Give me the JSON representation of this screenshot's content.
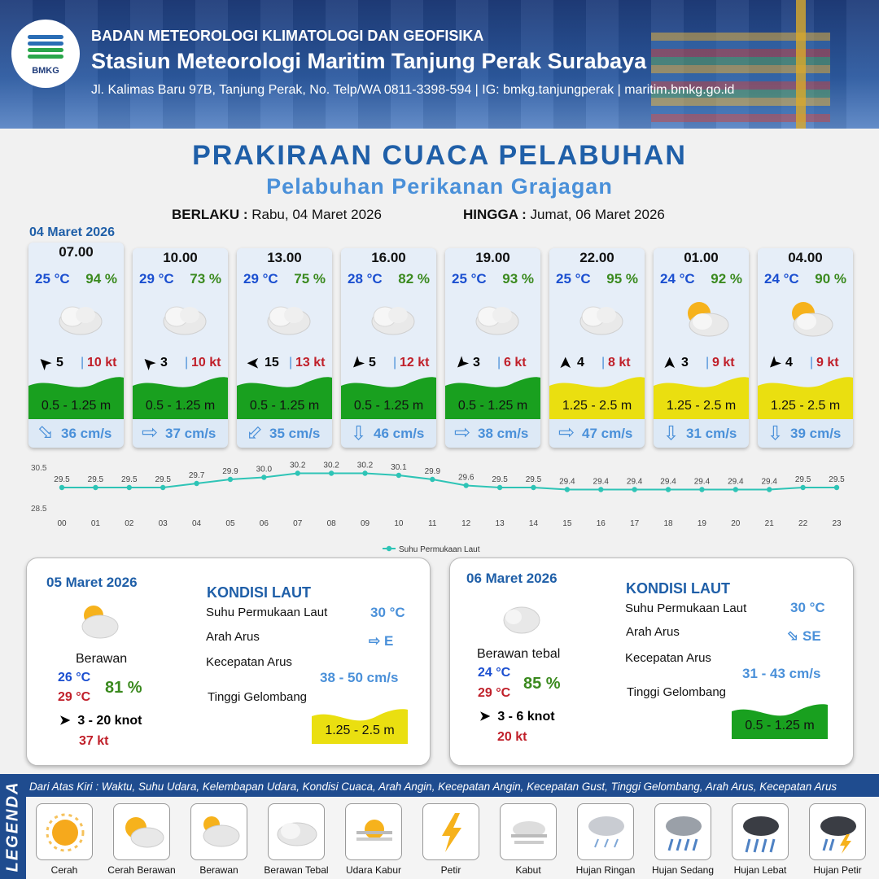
{
  "header": {
    "logo_text": "BMKG",
    "org": "BADAN METEOROLOGI KLIMATOLOGI DAN GEOFISIKA",
    "station": "Stasiun Meteorologi Maritim Tanjung Perak Surabaya",
    "address": "Jl. Kalimas Baru 97B, Tanjung Perak, No. Telp/WA 0811-3398-594 | IG: bmkg.tanjungperak | maritim.bmkg.go.id"
  },
  "title": "PRAKIRAAN CUACA PELABUHAN",
  "subtitle": "Pelabuhan Perikanan Grajagan",
  "validity": {
    "from_label": "BERLAKU :",
    "from_value": "Rabu, 04 Maret 2026",
    "to_label": "HINGGA :",
    "to_value": "Jumat, 06 Maret 2026"
  },
  "day1_date": "04 Maret 2026",
  "cards": [
    {
      "time": "07.00",
      "temp": "25 °C",
      "hum": "94 %",
      "icon": "cloudy-icon",
      "wind_dir": "SE",
      "wind": "5",
      "gust": "10 kt",
      "wave": "0.5 - 1.25 m",
      "wave_color": "#19a01f",
      "cur_dir": "SE",
      "cur": "36 cm/s"
    },
    {
      "time": "10.00",
      "temp": "29 °C",
      "hum": "73 %",
      "icon": "cloudy-icon",
      "wind_dir": "SE",
      "wind": "3",
      "gust": "10 kt",
      "wave": "0.5 - 1.25 m",
      "wave_color": "#19a01f",
      "cur_dir": "E",
      "cur": "37 cm/s"
    },
    {
      "time": "13.00",
      "temp": "29 °C",
      "hum": "75 %",
      "icon": "cloudy-icon",
      "wind_dir": "E",
      "wind": "15",
      "gust": "13 kt",
      "wave": "0.5 - 1.25 m",
      "wave_color": "#19a01f",
      "cur_dir": "SW",
      "cur": "35 cm/s"
    },
    {
      "time": "16.00",
      "temp": "28 °C",
      "hum": "82 %",
      "icon": "cloudy-icon",
      "wind_dir": "NE",
      "wind": "5",
      "gust": "12 kt",
      "wave": "0.5 - 1.25 m",
      "wave_color": "#19a01f",
      "cur_dir": "S",
      "cur": "46 cm/s"
    },
    {
      "time": "19.00",
      "temp": "25 °C",
      "hum": "93 %",
      "icon": "cloudy-icon",
      "wind_dir": "NE",
      "wind": "3",
      "gust": "6 kt",
      "wave": "0.5 - 1.25 m",
      "wave_color": "#19a01f",
      "cur_dir": "E",
      "cur": "38 cm/s"
    },
    {
      "time": "22.00",
      "temp": "25 °C",
      "hum": "95 %",
      "icon": "cloudy-icon",
      "wind_dir": "S",
      "wind": "4",
      "gust": "8 kt",
      "wave": "1.25 - 2.5 m",
      "wave_color": "#eadf10",
      "cur_dir": "E",
      "cur": "47 cm/s"
    },
    {
      "time": "01.00",
      "temp": "24 °C",
      "hum": "92 %",
      "icon": "partly-cloudy-icon",
      "wind_dir": "S",
      "wind": "3",
      "gust": "9 kt",
      "wave": "1.25 - 2.5 m",
      "wave_color": "#eadf10",
      "cur_dir": "S",
      "cur": "31 cm/s"
    },
    {
      "time": "04.00",
      "temp": "24 °C",
      "hum": "90 %",
      "icon": "partly-cloudy-icon",
      "wind_dir": "NE",
      "wind": "4",
      "gust": "9 kt",
      "wave": "1.25 - 2.5 m",
      "wave_color": "#eadf10",
      "cur_dir": "S",
      "cur": "39 cm/s"
    }
  ],
  "chart_data": {
    "type": "line",
    "categories": [
      "00",
      "01",
      "02",
      "03",
      "04",
      "05",
      "06",
      "07",
      "08",
      "09",
      "10",
      "11",
      "12",
      "13",
      "14",
      "15",
      "16",
      "17",
      "18",
      "19",
      "20",
      "21",
      "22",
      "23"
    ],
    "series": [
      {
        "name": "Suhu Permukaan Laut",
        "values": [
          29.5,
          29.5,
          29.5,
          29.5,
          29.7,
          29.9,
          30.0,
          30.2,
          30.2,
          30.2,
          30.1,
          29.9,
          29.6,
          29.5,
          29.5,
          29.4,
          29.4,
          29.4,
          29.4,
          29.4,
          29.4,
          29.4,
          29.5,
          29.5
        ]
      }
    ],
    "ylim": [
      28.5,
      30.5
    ],
    "ytick_labels": [
      "30.5",
      "28.5"
    ],
    "legend": "bottom",
    "color": "#2ec4b6"
  },
  "panels": [
    {
      "date": "05 Maret 2026",
      "icon": "partly-cloudy-icon",
      "condition": "Berawan",
      "tmin": "26 °C",
      "tmax": "29 °C",
      "hum": "81 %",
      "wind_dir": "S",
      "wind": "3  - 20 knot",
      "gust": "37 kt",
      "kondisi_title": "KONDISI LAUT",
      "sst_label": "Suhu Permukaan Laut",
      "sst": "30 °C",
      "cur_dir_label": "Arah Arus",
      "cur_dir": "E",
      "cur_speed_label": "Kecepatan Arus",
      "cur_speed": "38  - 50 cm/s",
      "wave_label": "Tinggi Gelombang",
      "wave": "1.25 - 2.5 m",
      "wave_color": "#eadf10"
    },
    {
      "date": "06 Maret 2026",
      "icon": "cloudy-icon",
      "condition": "Berawan tebal",
      "tmin": "24 °C",
      "tmax": "29 °C",
      "hum": "85 %",
      "wind_dir": "S",
      "wind": "3  - 6 knot",
      "gust": "20 kt",
      "kondisi_title": "KONDISI LAUT",
      "sst_label": "Suhu Permukaan Laut",
      "sst": "30 °C",
      "cur_dir_label": "Arah Arus",
      "cur_dir": "SE",
      "cur_speed_label": "Kecepatan Arus",
      "cur_speed": "31 - 43 cm/s",
      "wave_label": "Tinggi Gelombang",
      "wave": "0.5 - 1.25 m",
      "wave_color": "#19a01f"
    }
  ],
  "legend": {
    "title": "LEGENDA",
    "description": "Dari Atas Kiri : Waktu, Suhu Udara, Kelembapan Udara, Kondisi Cuaca, Arah Angin, Kecepatan Angin, Kecepatan Gust, Tinggi Gelombang, Arah Arus, Kecepatan Arus",
    "items": [
      {
        "label": "Cerah",
        "icon": "sun-icon"
      },
      {
        "label": "Cerah Berawan",
        "icon": "sun-cloud-icon"
      },
      {
        "label": "Berawan",
        "icon": "partly-cloudy-icon"
      },
      {
        "label": "Berawan Tebal",
        "icon": "cloudy-icon"
      },
      {
        "label": "Udara Kabur",
        "icon": "haze-icon"
      },
      {
        "label": "Petir",
        "icon": "lightning-icon"
      },
      {
        "label": "Kabut",
        "icon": "fog-icon"
      },
      {
        "label": "Hujan Ringan",
        "icon": "light-rain-icon"
      },
      {
        "label": "Hujan Sedang",
        "icon": "moderate-rain-icon"
      },
      {
        "label": "Hujan Lebat",
        "icon": "heavy-rain-icon"
      },
      {
        "label": "Hujan Petir",
        "icon": "thunderstorm-icon"
      }
    ]
  }
}
